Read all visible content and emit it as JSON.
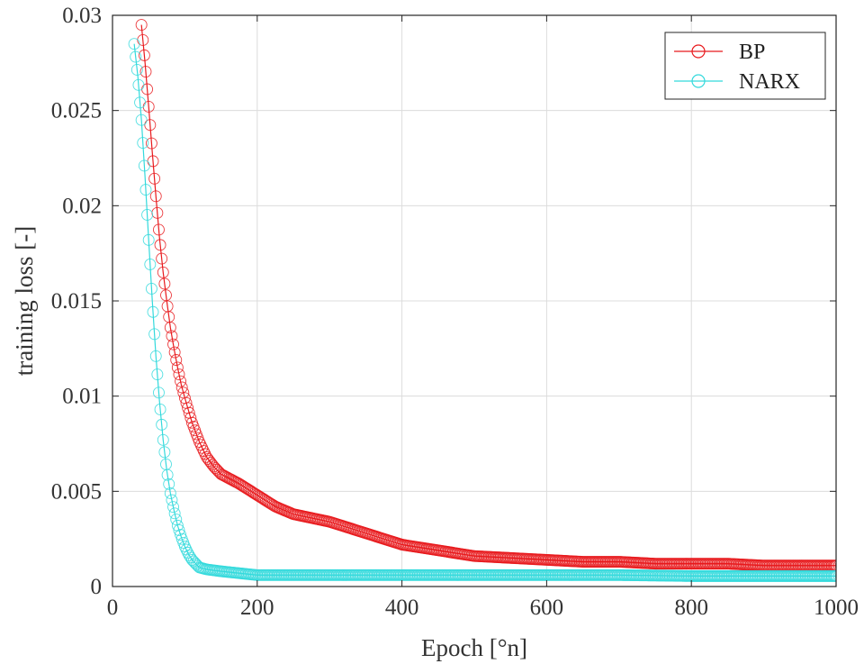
{
  "chart_data": {
    "type": "line",
    "xlabel": "Epoch [°n]",
    "ylabel": "training loss [-]",
    "xlim": [
      0,
      1000
    ],
    "ylim": [
      0,
      0.03
    ],
    "xticks": [
      0,
      200,
      400,
      600,
      800,
      1000
    ],
    "yticks": [
      0,
      0.005,
      0.01,
      0.015,
      0.02,
      0.025,
      0.03
    ],
    "xtick_labels": [
      "0",
      "200",
      "400",
      "600",
      "800",
      "1000"
    ],
    "ytick_labels": [
      "0",
      "0.005",
      "0.01",
      "0.015",
      "0.02",
      "0.025",
      "0.03"
    ],
    "grid": true,
    "legend_position": "top-right",
    "series": [
      {
        "name": "BP",
        "color": "#e8191c",
        "marker": "circle",
        "x": [
          40,
          45,
          50,
          55,
          60,
          65,
          70,
          75,
          80,
          85,
          90,
          95,
          100,
          110,
          120,
          130,
          140,
          150,
          175,
          200,
          225,
          250,
          275,
          300,
          325,
          350,
          375,
          400,
          450,
          500,
          550,
          600,
          650,
          700,
          750,
          800,
          850,
          900,
          950,
          1000
        ],
        "y": [
          0.0295,
          0.0275,
          0.0252,
          0.0228,
          0.0205,
          0.0183,
          0.0165,
          0.015,
          0.0136,
          0.0125,
          0.0115,
          0.0106,
          0.0099,
          0.0086,
          0.0076,
          0.0068,
          0.0063,
          0.0059,
          0.0054,
          0.0048,
          0.0042,
          0.0038,
          0.0036,
          0.0034,
          0.0031,
          0.0028,
          0.0025,
          0.0022,
          0.0019,
          0.0016,
          0.0015,
          0.0014,
          0.0013,
          0.0013,
          0.0012,
          0.0012,
          0.0012,
          0.0011,
          0.0011,
          0.0011
        ]
      },
      {
        "name": "NARX",
        "color": "#33d9dc",
        "marker": "circle",
        "x": [
          30,
          35,
          40,
          45,
          50,
          55,
          60,
          65,
          70,
          75,
          80,
          85,
          90,
          95,
          100,
          105,
          110,
          115,
          120,
          130,
          140,
          150,
          175,
          200,
          250,
          300,
          400,
          500,
          600,
          700,
          800,
          900,
          1000
        ],
        "y": [
          0.0285,
          0.0268,
          0.0245,
          0.0215,
          0.0182,
          0.015,
          0.0121,
          0.0097,
          0.0077,
          0.0061,
          0.0049,
          0.004,
          0.0032,
          0.0026,
          0.0021,
          0.0017,
          0.0014,
          0.0012,
          0.001,
          0.0009,
          0.00085,
          0.0008,
          0.0007,
          0.0006,
          0.0006,
          0.0006,
          0.0006,
          0.0006,
          0.0006,
          0.0006,
          0.00055,
          0.00055,
          0.00055
        ]
      }
    ]
  }
}
